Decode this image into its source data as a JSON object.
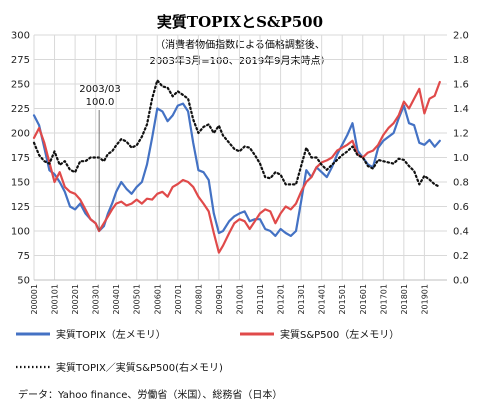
{
  "chart_data": {
    "type": "line",
    "title": "実質TOPIXとS&P500",
    "subtitle_lines": [
      "（消費者物価指数による価格調整後、",
      "2003年3月=100、2019年9月末時点）"
    ],
    "x_tick_labels": [
      "200001",
      "200101",
      "200201",
      "200301",
      "200401",
      "200501",
      "200601",
      "200701",
      "200801",
      "200901",
      "201001",
      "201101",
      "201201",
      "201301",
      "201401",
      "201501",
      "201601",
      "201701",
      "201801",
      "201901"
    ],
    "y_left": {
      "min": 50,
      "max": 300,
      "ticks": [
        "50",
        "75",
        "100",
        "125",
        "150",
        "175",
        "200",
        "225",
        "250",
        "275",
        "300"
      ]
    },
    "y_right": {
      "min": 0.0,
      "max": 2.0,
      "ticks": [
        "0.0",
        "0.2",
        "0.4",
        "0.6",
        "0.8",
        "1.0",
        "1.2",
        "1.4",
        "1.6",
        "1.8",
        "2.0"
      ]
    },
    "grid": true,
    "annotation": {
      "lines": [
        "2003/03",
        "100.0"
      ],
      "x": 2003.17
    },
    "series": [
      {
        "name": "実質TOPIX（左メモリ）",
        "axis": "left",
        "color": "#4472c4",
        "style": "solid",
        "x": [
          2000.0,
          2000.25,
          2000.5,
          2000.75,
          2001.0,
          2001.25,
          2001.5,
          2001.75,
          2002.0,
          2002.25,
          2002.5,
          2002.75,
          2003.0,
          2003.17,
          2003.4,
          2003.6,
          2003.8,
          2004.0,
          2004.25,
          2004.5,
          2004.75,
          2005.0,
          2005.25,
          2005.5,
          2005.75,
          2006.0,
          2006.25,
          2006.5,
          2006.75,
          2007.0,
          2007.25,
          2007.5,
          2007.75,
          2008.0,
          2008.25,
          2008.5,
          2008.75,
          2009.0,
          2009.2,
          2009.5,
          2009.75,
          2010.0,
          2010.25,
          2010.5,
          2010.75,
          2011.0,
          2011.25,
          2011.5,
          2011.75,
          2012.0,
          2012.25,
          2012.5,
          2012.75,
          2013.0,
          2013.25,
          2013.5,
          2013.75,
          2014.0,
          2014.25,
          2014.5,
          2014.75,
          2015.0,
          2015.25,
          2015.5,
          2015.75,
          2016.0,
          2016.25,
          2016.5,
          2016.75,
          2017.0,
          2017.25,
          2017.5,
          2017.75,
          2018.0,
          2018.25,
          2018.5,
          2018.75,
          2019.0,
          2019.25,
          2019.5,
          2019.75
        ],
        "values": [
          218,
          208,
          185,
          162,
          158,
          150,
          140,
          125,
          122,
          128,
          118,
          112,
          108,
          100,
          105,
          118,
          128,
          140,
          150,
          143,
          138,
          145,
          150,
          168,
          195,
          225,
          222,
          212,
          218,
          228,
          230,
          222,
          190,
          162,
          160,
          152,
          118,
          98,
          100,
          110,
          115,
          118,
          120,
          110,
          112,
          112,
          102,
          100,
          95,
          102,
          98,
          95,
          100,
          130,
          162,
          155,
          165,
          160,
          155,
          165,
          178,
          188,
          198,
          210,
          182,
          175,
          168,
          165,
          185,
          192,
          196,
          200,
          215,
          228,
          210,
          208,
          190,
          188,
          193,
          186,
          192
        ]
      },
      {
        "name": "実質S&P500（左メモリ）",
        "axis": "left",
        "color": "#e04a4a",
        "style": "solid",
        "x": [
          2000.0,
          2000.25,
          2000.5,
          2000.75,
          2001.0,
          2001.25,
          2001.5,
          2001.75,
          2002.0,
          2002.25,
          2002.5,
          2002.75,
          2003.0,
          2003.17,
          2003.4,
          2003.6,
          2003.8,
          2004.0,
          2004.25,
          2004.5,
          2004.75,
          2005.0,
          2005.25,
          2005.5,
          2005.75,
          2006.0,
          2006.25,
          2006.5,
          2006.75,
          2007.0,
          2007.25,
          2007.5,
          2007.75,
          2008.0,
          2008.25,
          2008.5,
          2008.75,
          2009.0,
          2009.2,
          2009.5,
          2009.75,
          2010.0,
          2010.25,
          2010.5,
          2010.75,
          2011.0,
          2011.25,
          2011.5,
          2011.75,
          2012.0,
          2012.25,
          2012.5,
          2012.75,
          2013.0,
          2013.25,
          2013.5,
          2013.75,
          2014.0,
          2014.25,
          2014.5,
          2014.75,
          2015.0,
          2015.25,
          2015.5,
          2015.75,
          2016.0,
          2016.25,
          2016.5,
          2016.75,
          2017.0,
          2017.25,
          2017.5,
          2017.75,
          2018.0,
          2018.25,
          2018.5,
          2018.75,
          2019.0,
          2019.25,
          2019.5,
          2019.75
        ],
        "values": [
          195,
          205,
          190,
          170,
          150,
          160,
          145,
          140,
          138,
          132,
          122,
          112,
          108,
          100,
          108,
          115,
          122,
          128,
          130,
          126,
          128,
          132,
          128,
          133,
          132,
          138,
          140,
          135,
          145,
          148,
          152,
          150,
          145,
          135,
          128,
          120,
          98,
          78,
          85,
          98,
          108,
          112,
          110,
          102,
          110,
          118,
          122,
          120,
          108,
          118,
          125,
          122,
          128,
          140,
          150,
          155,
          165,
          170,
          172,
          175,
          182,
          185,
          188,
          192,
          178,
          175,
          180,
          182,
          188,
          198,
          205,
          210,
          218,
          232,
          225,
          235,
          245,
          220,
          235,
          238,
          252
        ]
      },
      {
        "name": "実質TOPIX／実質S&P500(右メモリ)",
        "axis": "right",
        "color": "#111111",
        "style": "dotted",
        "x": [
          2000.0,
          2000.25,
          2000.5,
          2000.75,
          2001.0,
          2001.25,
          2001.5,
          2001.75,
          2002.0,
          2002.25,
          2002.5,
          2002.75,
          2003.0,
          2003.17,
          2003.4,
          2003.6,
          2003.8,
          2004.0,
          2004.25,
          2004.5,
          2004.75,
          2005.0,
          2005.25,
          2005.5,
          2005.75,
          2006.0,
          2006.25,
          2006.5,
          2006.75,
          2007.0,
          2007.25,
          2007.5,
          2007.75,
          2008.0,
          2008.25,
          2008.5,
          2008.75,
          2009.0,
          2009.2,
          2009.5,
          2009.75,
          2010.0,
          2010.25,
          2010.5,
          2010.75,
          2011.0,
          2011.25,
          2011.5,
          2011.75,
          2012.0,
          2012.25,
          2012.5,
          2012.75,
          2013.0,
          2013.25,
          2013.5,
          2013.75,
          2014.0,
          2014.25,
          2014.5,
          2014.75,
          2015.0,
          2015.25,
          2015.5,
          2015.75,
          2016.0,
          2016.25,
          2016.5,
          2016.75,
          2017.0,
          2017.25,
          2017.5,
          2017.75,
          2018.0,
          2018.25,
          2018.5,
          2018.75,
          2019.0,
          2019.25,
          2019.5,
          2019.75
        ],
        "values": [
          1.12,
          1.02,
          0.97,
          0.95,
          1.05,
          0.94,
          0.97,
          0.9,
          0.88,
          0.97,
          0.97,
          1.0,
          1.0,
          1.0,
          0.97,
          1.03,
          1.05,
          1.1,
          1.15,
          1.13,
          1.08,
          1.1,
          1.17,
          1.27,
          1.48,
          1.63,
          1.58,
          1.57,
          1.5,
          1.54,
          1.51,
          1.48,
          1.31,
          1.2,
          1.25,
          1.27,
          1.2,
          1.26,
          1.18,
          1.12,
          1.07,
          1.05,
          1.09,
          1.08,
          1.02,
          0.95,
          0.84,
          0.83,
          0.88,
          0.86,
          0.78,
          0.78,
          0.78,
          0.93,
          1.08,
          1.0,
          1.0,
          0.94,
          0.9,
          0.94,
          0.98,
          1.02,
          1.05,
          1.09,
          1.02,
          1.0,
          0.93,
          0.91,
          0.98,
          0.97,
          0.96,
          0.95,
          0.99,
          0.98,
          0.93,
          0.89,
          0.78,
          0.85,
          0.82,
          0.78,
          0.76
        ]
      }
    ],
    "legend": {
      "topix": "実質TOPIX（左メモリ）",
      "sp500": "実質S&P500（左メモリ）",
      "ratio": "実質TOPIX／実質S&P500(右メモリ)"
    }
  },
  "source": "データ：Yahoo finance、労働省（米国）、総務省（日本）"
}
